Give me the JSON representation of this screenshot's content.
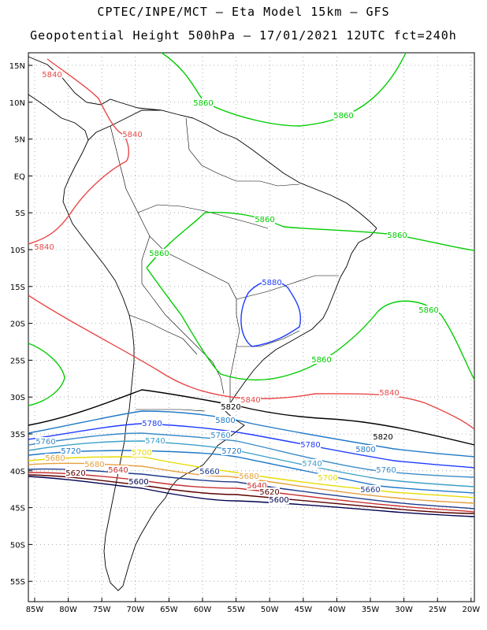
{
  "header": {
    "line1": "CPTEC/INPE/MCT –  Eta Model 15km – GFS",
    "line2": "Geopotential Height 500hPa – 17/01/2021 12UTC fct=240h"
  },
  "map": {
    "lon_ticks": [
      "85W",
      "80W",
      "75W",
      "70W",
      "65W",
      "60W",
      "55W",
      "50W",
      "45W",
      "40W",
      "35W",
      "30W",
      "25W",
      "20W"
    ],
    "lat_ticks": [
      "15N",
      "10N",
      "5N",
      "EQ",
      "5S",
      "10S",
      "15S",
      "20S",
      "25S",
      "30S",
      "35S",
      "40S",
      "45S",
      "50S",
      "55S"
    ],
    "contour_levels": [
      {
        "value": "5860",
        "color": "#00cc00"
      },
      {
        "value": "5880",
        "color": "#1e3cff"
      },
      {
        "value": "5840",
        "color": "#e84848"
      },
      {
        "value": "5820",
        "color": "#000000"
      },
      {
        "value": "5800",
        "color": "#1e78c8"
      },
      {
        "value": "5780",
        "color": "#1e3cff"
      },
      {
        "value": "5760",
        "color": "#3c8cc8"
      },
      {
        "value": "5740",
        "color": "#3ca0c8"
      },
      {
        "value": "5720",
        "color": "#1e78c8"
      },
      {
        "value": "5700",
        "color": "#e6dc00"
      },
      {
        "value": "5680",
        "color": "#e6a03c"
      },
      {
        "value": "5660",
        "color": "#1e3c8c"
      },
      {
        "value": "5640",
        "color": "#c83232"
      },
      {
        "value": "5620",
        "color": "#5a0000"
      },
      {
        "value": "5600",
        "color": "#000050"
      }
    ]
  }
}
